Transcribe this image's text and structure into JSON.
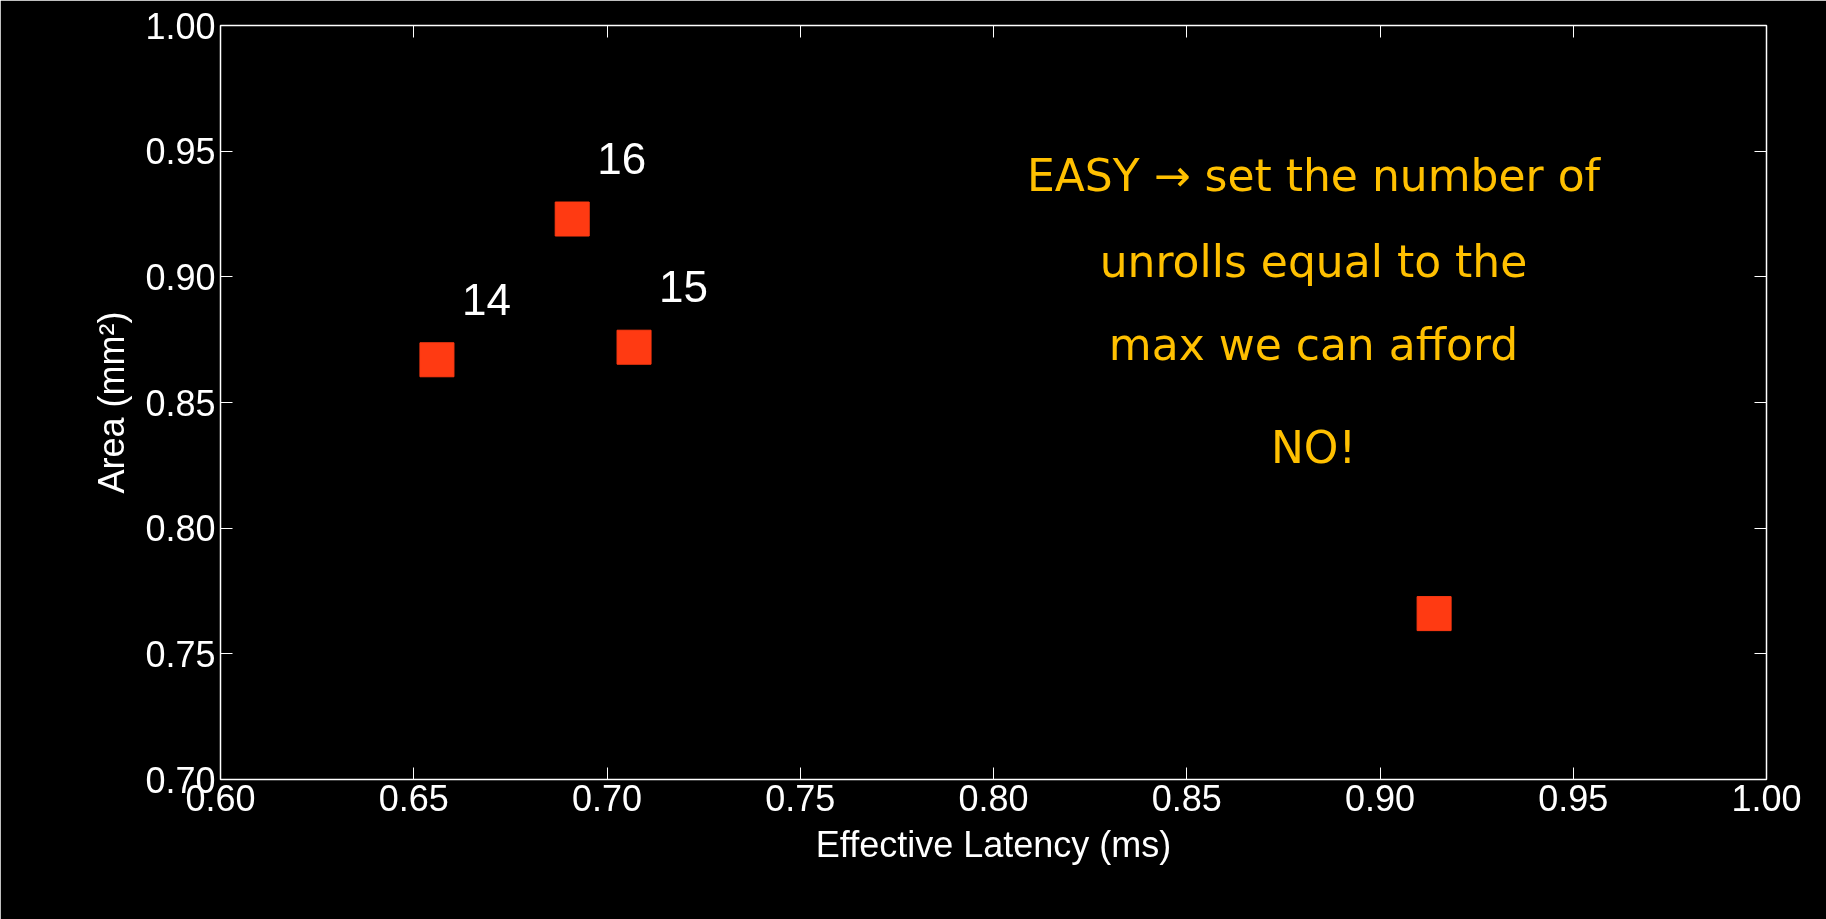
{
  "chart_data": {
    "type": "scatter",
    "xlabel": "Effective Latency (ms)",
    "ylabel": "Area (mm²)",
    "x": [
      0.656,
      0.691,
      0.707,
      0.914
    ],
    "series": [
      {
        "color": "#ff3a12",
        "values": [
          0.867,
          0.923,
          0.872,
          0.766
        ]
      }
    ],
    "marker": "square",
    "grid": false,
    "xlim": [
      0.6,
      1.0
    ],
    "xticks": [
      {
        "value": 0.6,
        "label": "0.60"
      },
      {
        "value": 0.65,
        "label": "0.65"
      },
      {
        "value": 0.7,
        "label": "0.70"
      },
      {
        "value": 0.75,
        "label": "0.75"
      },
      {
        "value": 0.8,
        "label": "0.80"
      },
      {
        "value": 0.85,
        "label": "0.85"
      },
      {
        "value": 0.9,
        "label": "0.90"
      },
      {
        "value": 0.95,
        "label": "0.95"
      },
      {
        "value": 1.0,
        "label": "1.00"
      }
    ],
    "ylim": [
      0.7,
      1.0
    ],
    "yticks": [
      {
        "value": 0.7,
        "label": "0.70"
      },
      {
        "value": 0.75,
        "label": "0.75"
      },
      {
        "value": 0.8,
        "label": "0.80"
      },
      {
        "value": 0.85,
        "label": "0.85"
      },
      {
        "value": 0.9,
        "label": "0.90"
      },
      {
        "value": 0.95,
        "label": "0.95"
      },
      {
        "value": 1.0,
        "label": "1.00"
      }
    ],
    "annotations": [
      {
        "text": "14",
        "x": 0.656,
        "y": 0.867
      },
      {
        "text": "16",
        "x": 0.691,
        "y": 0.923
      },
      {
        "text": "15",
        "x": 0.707,
        "y": 0.872
      },
      "EASY → set the number of",
      "unrolls equal to the",
      "max we can afford",
      "NO!"
    ]
  }
}
